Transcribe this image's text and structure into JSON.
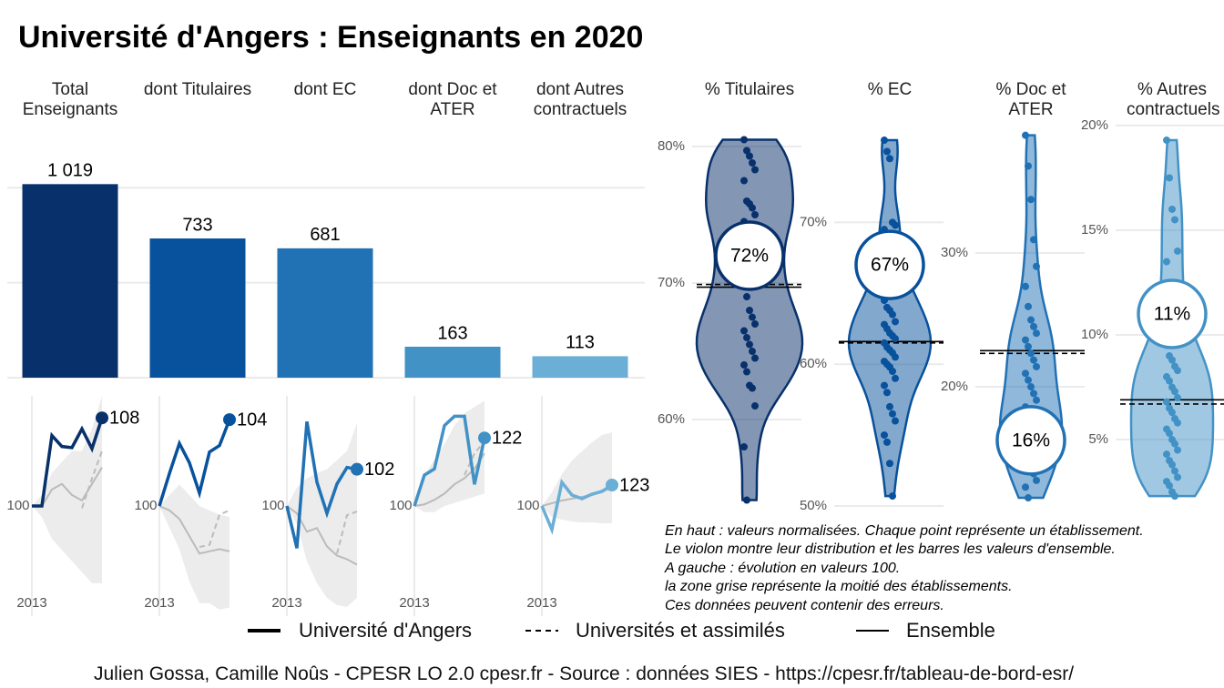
{
  "title": "Université d'Angers  :  Enseignants en 2020",
  "notes": [
    "En haut : valeurs normalisées. Chaque point représente un établissement.",
    "Le violon montre leur distribution et les barres les valeurs d'ensemble.",
    "A gauche : évolution en valeurs 100.",
    "la zone grise représente la moitié des établissements.",
    "Ces données peuvent contenir des erreurs."
  ],
  "caption": "Julien Gossa, Camille Noûs - CPESR LO 2.0 cpesr.fr - Source : données SIES - https://cpesr.fr/tableau-de-bord-esr/",
  "chart_data": [
    {
      "type": "bar",
      "categories": [
        "Total Enseignants",
        "dont Titulaires",
        "dont EC",
        "dont Doc et ATER",
        "dont Autres contractuels"
      ],
      "values": [
        1019,
        733,
        681,
        163,
        113
      ],
      "value_labels": [
        "1 019",
        "733",
        "681",
        "163",
        "113"
      ],
      "colors": [
        "#08306b",
        "#08519c",
        "#2171b5",
        "#4292c6",
        "#6baed6"
      ],
      "ylim": [
        0,
        1150
      ],
      "yticks": [
        0,
        500,
        1000
      ],
      "grid": true
    },
    {
      "type": "line",
      "x": [
        2013,
        2014,
        2015,
        2016,
        2017,
        2018,
        2019,
        2020
      ],
      "xlim": [
        2012,
        2021
      ],
      "xticks": [
        2013
      ],
      "ylim": [
        90,
        110
      ],
      "yticks": [
        100
      ],
      "band": {
        "low": [
          100,
          99,
          97,
          96,
          95,
          94,
          93,
          93
        ],
        "high": [
          100,
          101,
          103,
          104,
          105,
          105,
          107,
          110
        ]
      },
      "series": [
        {
          "name": "Université d'Angers",
          "color": "#08306b",
          "style": "thick",
          "values": [
            100,
            100,
            106.4,
            105.4,
            105.3,
            107,
            105.2,
            108
          ]
        },
        {
          "name": "Universités et assimilés",
          "color": "#bbbbbb",
          "style": "dashed",
          "values": [
            null,
            null,
            null,
            null,
            null,
            99.8,
            102.5,
            105
          ]
        },
        {
          "name": "Ensemble",
          "color": "#bbbbbb",
          "style": "solid",
          "values": [
            100,
            100,
            101.5,
            102,
            101,
            100.5,
            102,
            103.5
          ]
        }
      ]
    },
    {
      "type": "line",
      "x": [
        2013,
        2014,
        2015,
        2016,
        2017,
        2018,
        2019,
        2020
      ],
      "xlim": [
        2012,
        2021
      ],
      "xticks": [
        2013
      ],
      "ylim": [
        94.9,
        105.1
      ],
      "yticks": [
        100
      ],
      "band": {
        "low": [
          100,
          99,
          98,
          96.5,
          95.5,
          95.5,
          95.2,
          95.3
        ],
        "high": [
          100,
          100.5,
          101,
          100.5,
          100,
          99.8,
          99.6,
          99.5
        ]
      },
      "series": [
        {
          "color": "#08519c",
          "style": "thick",
          "values": [
            100,
            101.5,
            102.9,
            102,
            100.6,
            102.5,
            102.8,
            104
          ]
        },
        {
          "color": "#bbbbbb",
          "style": "dashed",
          "values": [
            null,
            null,
            null,
            null,
            98.1,
            98.2,
            99.6,
            99.8
          ]
        },
        {
          "color": "#bbbbbb",
          "style": "solid",
          "values": [
            100,
            99.8,
            99.4,
            98.6,
            97.8,
            97.9,
            98,
            97.9
          ]
        }
      ]
    },
    {
      "type": "line",
      "x": [
        2013,
        2014,
        2015,
        2016,
        2017,
        2018,
        2019,
        2020
      ],
      "xlim": [
        2012,
        2021
      ],
      "xticks": [
        2013
      ],
      "ylim": [
        94,
        106
      ],
      "yticks": [
        100
      ],
      "band": {
        "low": [
          100,
          99,
          97,
          95.8,
          95,
          94.6,
          94.5,
          95
        ],
        "high": [
          100,
          101,
          101.5,
          101.8,
          102,
          102.5,
          103,
          104.5
        ]
      },
      "series": [
        {
          "color": "#2171b5",
          "style": "thick",
          "values": [
            100,
            97.7,
            104.6,
            101.3,
            99.6,
            101.2,
            102.1,
            102
          ]
        },
        {
          "color": "#bbbbbb",
          "style": "dashed",
          "values": [
            null,
            null,
            null,
            null,
            null,
            97.4,
            99.5,
            99.7
          ]
        },
        {
          "color": "#bbbbbb",
          "style": "solid",
          "values": [
            100,
            99.6,
            98.6,
            98.8,
            97.8,
            97.3,
            97.1,
            96.8
          ]
        }
      ]
    },
    {
      "type": "line",
      "x": [
        2013,
        2014,
        2015,
        2016,
        2017,
        2018,
        2019,
        2020
      ],
      "xlim": [
        2012,
        2021
      ],
      "xticks": [
        2013
      ],
      "ylim": [
        64.4,
        135.6
      ],
      "yticks": [
        100
      ],
      "band": {
        "low": [
          100,
          98,
          98,
          100,
          101,
          102,
          103,
          104
        ],
        "high": [
          100,
          110,
          115,
          120,
          126,
          130,
          132,
          134
        ]
      },
      "series": [
        {
          "color": "#4292c6",
          "style": "thick",
          "values": [
            100,
            110,
            112,
            126,
            129,
            129,
            107,
            122
          ]
        },
        {
          "color": "#bbbbbb",
          "style": "dashed",
          "values": [
            null,
            null,
            null,
            null,
            null,
            110,
            117,
            121
          ]
        },
        {
          "color": "#bbbbbb",
          "style": "solid",
          "values": [
            100,
            100.5,
            102,
            104,
            107,
            109,
            112,
            117
          ]
        }
      ]
    },
    {
      "type": "line",
      "x": [
        2013,
        2014,
        2015,
        2016,
        2017,
        2018,
        2019,
        2020
      ],
      "xlim": [
        2012,
        2021
      ],
      "xticks": [
        2013
      ],
      "ylim": [
        -21,
        221
      ],
      "yticks": [
        100
      ],
      "band": {
        "low": [
          100,
          88,
          85,
          83,
          82,
          82,
          81,
          81
        ],
        "high": [
          100,
          115,
          135,
          150,
          160,
          170,
          178,
          181
        ]
      },
      "series": [
        {
          "color": "#6baed6",
          "style": "thick",
          "values": [
            100,
            74,
            126,
            112,
            108,
            113,
            116,
            123
          ]
        },
        {
          "color": "#bbbbbb",
          "style": "dashed",
          "values": [
            null,
            null,
            null,
            null,
            null,
            113,
            117,
            122
          ]
        },
        {
          "color": "#bbbbbb",
          "style": "solid",
          "values": [
            100,
            103,
            106,
            108,
            110,
            112,
            116,
            120
          ]
        }
      ]
    },
    {
      "type": "violin",
      "title": "% Titulaires",
      "color": "#08306b",
      "ylim": [
        53.67,
        81.4
      ],
      "yticks": [
        {
          "value": 60,
          "label": "60%"
        },
        {
          "value": 70,
          "label": "70%"
        },
        {
          "value": 80,
          "label": "80%"
        }
      ],
      "value": 72,
      "value_label": "72%",
      "hlines": [
        {
          "value": 69.7,
          "style": "solid"
        },
        {
          "value": 69.9,
          "style": "dashed"
        }
      ],
      "points": [
        80.5,
        79.7,
        79.3,
        78.8,
        78.3,
        77.5,
        76,
        75.8,
        75.5,
        75,
        74.5,
        73,
        72.5,
        71.5,
        70.5,
        69.8,
        69,
        68,
        67.5,
        67,
        66.5,
        66,
        65.5,
        65,
        64.5,
        64,
        63.5,
        62.5,
        62.3,
        61,
        58,
        54.1
      ]
    },
    {
      "type": "violin",
      "title": "% EC",
      "color": "#08519c",
      "ylim": [
        50,
        76.7
      ],
      "yticks": [
        {
          "value": 50,
          "label": "50%"
        },
        {
          "value": 60,
          "label": "60%"
        },
        {
          "value": 70,
          "label": "70%"
        }
      ],
      "value": 67,
      "value_label": "67%",
      "hlines": [
        {
          "value": 61.6,
          "style": "solid"
        },
        {
          "value": 61.5,
          "style": "dashed"
        }
      ],
      "points": [
        75.8,
        75,
        74.5,
        70,
        69.8,
        69.5,
        67,
        66.5,
        65.5,
        65,
        64.5,
        64,
        63.8,
        63.5,
        63,
        62.8,
        62.5,
        62.2,
        62,
        61.8,
        61.5,
        61.2,
        61,
        60.8,
        60.5,
        60.2,
        60,
        59.8,
        59.5,
        59,
        58.5,
        58,
        57,
        56.5,
        56,
        55,
        54.5,
        53,
        50.7
      ]
    },
    {
      "type": "violin",
      "title": "% Doc et ATER",
      "color": "#2171b5",
      "ylim": [
        11.09,
        39.39
      ],
      "yticks": [
        {
          "value": 20,
          "label": "20%"
        },
        {
          "value": 30,
          "label": "30%"
        }
      ],
      "value": 16,
      "value_label": "16%",
      "hlines": [
        {
          "value": 22.7,
          "style": "solid"
        },
        {
          "value": 22.5,
          "style": "dashed"
        }
      ],
      "points": [
        38.8,
        36.5,
        34,
        31,
        29,
        27.5,
        26,
        25,
        24.5,
        24,
        23.5,
        23,
        22.5,
        22,
        21.5,
        21,
        20.5,
        20,
        19.5,
        19,
        18.5,
        18,
        17.8,
        17.5,
        17,
        16.8,
        16.5,
        16,
        15.8,
        15.5,
        15,
        14.5,
        14,
        13.5,
        13,
        12.5,
        11.7
      ]
    },
    {
      "type": "violin",
      "title": "% Autres contractuels",
      "color": "#4292c6",
      "ylim": [
        1.83,
        19.91
      ],
      "yticks": [
        {
          "value": 5,
          "label": "5%"
        },
        {
          "value": 10,
          "label": "10%"
        },
        {
          "value": 15,
          "label": "15%"
        },
        {
          "value": 20,
          "label": "20%"
        }
      ],
      "value": 11,
      "value_label": "11%",
      "hlines": [
        {
          "value": 6.9,
          "style": "solid"
        },
        {
          "value": 6.7,
          "style": "dashed"
        }
      ],
      "points": [
        19.3,
        17.5,
        16,
        15.5,
        14,
        13.5,
        12,
        11.5,
        10.5,
        10,
        9.5,
        9,
        8.8,
        8.5,
        8.3,
        8,
        7.8,
        7.5,
        7.3,
        7,
        6.8,
        6.5,
        6.3,
        6,
        5.8,
        5.5,
        5.3,
        5,
        4.8,
        4.5,
        4.3,
        4,
        3.8,
        3.5,
        3.2,
        3,
        2.8,
        2.5,
        2.3
      ]
    }
  ]
}
